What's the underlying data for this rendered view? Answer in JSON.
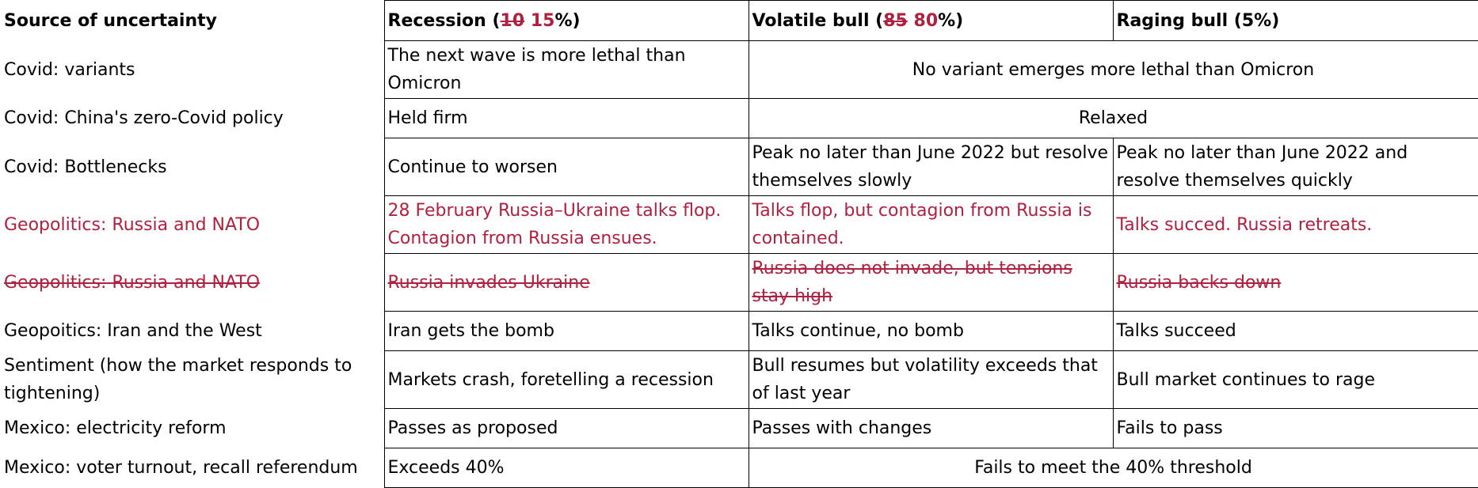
{
  "header": {
    "source": "Source of uncertainty",
    "recession": {
      "pre": "Recession (",
      "old": "10",
      "new": "15",
      "post": "%)"
    },
    "volatile": {
      "pre": "Volatile bull (",
      "old": "85",
      "new": "80",
      "post": "%)"
    },
    "raging": "Raging bull (5%)"
  },
  "rows": [
    {
      "source": "Covid: variants",
      "recession": "The next wave is more lethal than Omicron",
      "merged": "No variant emerges more lethal than Omicron"
    },
    {
      "source": "Covid: China's zero-Covid policy",
      "recession": "Held firm",
      "merged": "Relaxed"
    },
    {
      "source": "Covid: Bottlenecks",
      "recession": "Continue to worsen",
      "volatile": "Peak no later than June 2022 but resolve themselves slowly",
      "raging": "Peak no later than June 2022 and resolve themselves quickly"
    },
    {
      "source": "Geopolitics: Russia and NATO",
      "recession": "28 February Russia–Ukraine talks flop. Contagion from Russia ensues.",
      "volatile": "Talks flop, but contagion from Russia is contained.",
      "raging": "Talks succed. Russia retreats."
    },
    {
      "source": "Geopolitics: Russia and NATO",
      "recession": "Russia invades Ukraine",
      "volatile": "Russia does not invade, but tensions stay high",
      "raging": "Russia backs down"
    },
    {
      "source": "Geopoitics: Iran and the West",
      "recession": "Iran gets the bomb",
      "volatile": "Talks continue, no bomb",
      "raging": "Talks succeed"
    },
    {
      "source": "Sentiment (how the market responds to tightening)",
      "recession": "Markets crash, foretelling a recession",
      "volatile": "Bull resumes but volatility exceeds that of last year",
      "raging": "Bull market continues to rage"
    },
    {
      "source": "Mexico: electricity reform",
      "recession": "Passes as proposed",
      "volatile": "Passes with changes",
      "raging": "Fails to pass"
    },
    {
      "source": "Mexico: voter turnout, recall referendum",
      "recession": "Exceeds 40%",
      "merged": "Fails to meet the 40% threshold"
    }
  ],
  "colors": {
    "revised": "#b0213f",
    "text": "#000000",
    "border": "#000000"
  }
}
